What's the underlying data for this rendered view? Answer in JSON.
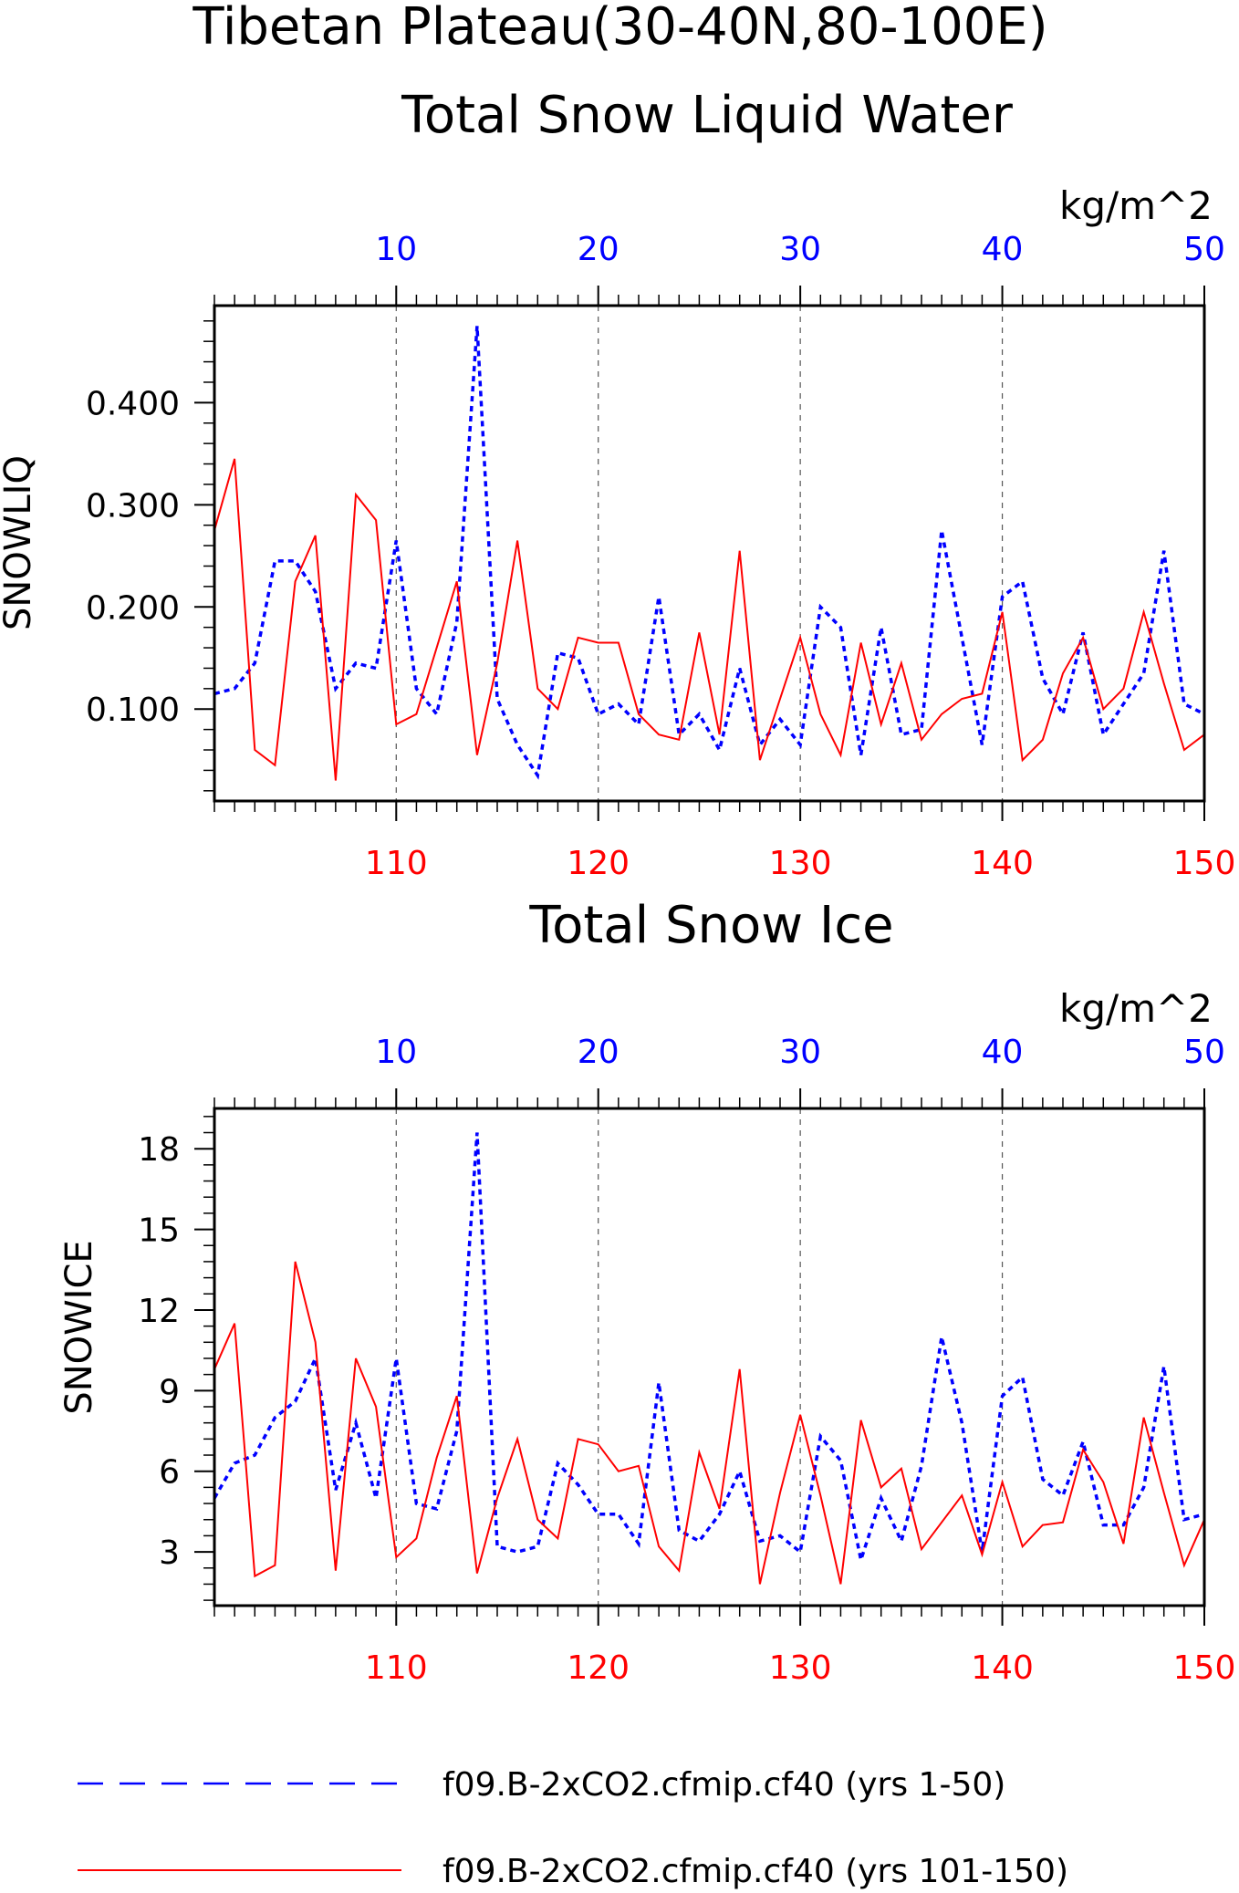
{
  "page": {
    "title_line1": "Tibetan Plateau(30-40N,80-100E)"
  },
  "colors": {
    "series_a": "#0000ff",
    "series_b": "#ff0000",
    "frame": "#000000",
    "grid": "#555555"
  },
  "legend": {
    "entries": [
      {
        "label": "f09.B-2xCO2.cfmip.cf40 (yrs 1-50)",
        "color": "#0000ff",
        "style": "dashed"
      },
      {
        "label": "f09.B-2xCO2.cfmip.cf40 (yrs 101-150)",
        "color": "#ff0000",
        "style": "solid"
      }
    ]
  },
  "chart_data": [
    {
      "type": "line",
      "title": "Total Snow Liquid Water",
      "units": "kg/m^2",
      "ylabel": "SNOWLIQ",
      "ylim": [
        0.01,
        0.495
      ],
      "yticks": [
        0.1,
        0.2,
        0.3,
        0.4
      ],
      "ytick_labels": [
        "0.100",
        "0.200",
        "0.300",
        "0.400"
      ],
      "top_axis": {
        "range": [
          1,
          50
        ],
        "ticks": [
          10,
          20,
          30,
          40,
          50
        ],
        "labels": [
          "10",
          "20",
          "30",
          "40",
          "50"
        ],
        "color": "#0000ff"
      },
      "bottom_axis": {
        "range": [
          101,
          150
        ],
        "ticks": [
          110,
          120,
          130,
          140,
          150
        ],
        "labels": [
          "110",
          "120",
          "130",
          "140",
          "150"
        ],
        "color": "#ff0000"
      },
      "grid": "vertical dashed at major ticks",
      "series": [
        {
          "axis": "top",
          "color": "#0000ff",
          "style": "dashed",
          "x": [
            1,
            2,
            3,
            4,
            5,
            6,
            7,
            8,
            9,
            10,
            11,
            12,
            13,
            14,
            15,
            16,
            17,
            18,
            19,
            20,
            21,
            22,
            23,
            24,
            25,
            26,
            27,
            28,
            29,
            30,
            31,
            32,
            33,
            34,
            35,
            36,
            37,
            38,
            39,
            40,
            41,
            42,
            43,
            44,
            45,
            46,
            47,
            48,
            49,
            50
          ],
          "values": [
            0.115,
            0.12,
            0.145,
            0.245,
            0.245,
            0.215,
            0.12,
            0.145,
            0.14,
            0.265,
            0.12,
            0.095,
            0.185,
            0.475,
            0.11,
            0.065,
            0.035,
            0.155,
            0.15,
            0.095,
            0.105,
            0.085,
            0.21,
            0.075,
            0.095,
            0.06,
            0.14,
            0.065,
            0.09,
            0.065,
            0.2,
            0.18,
            0.055,
            0.18,
            0.075,
            0.08,
            0.275,
            0.17,
            0.065,
            0.21,
            0.225,
            0.13,
            0.095,
            0.175,
            0.075,
            0.105,
            0.135,
            0.255,
            0.105,
            0.095
          ]
        },
        {
          "axis": "bottom",
          "color": "#ff0000",
          "style": "solid",
          "x": [
            101,
            102,
            103,
            104,
            105,
            106,
            107,
            108,
            109,
            110,
            111,
            112,
            113,
            114,
            115,
            116,
            117,
            118,
            119,
            120,
            121,
            122,
            123,
            124,
            125,
            126,
            127,
            128,
            129,
            130,
            131,
            132,
            133,
            134,
            135,
            136,
            137,
            138,
            139,
            140,
            141,
            142,
            143,
            144,
            145,
            146,
            147,
            148,
            149,
            150
          ],
          "values": [
            0.275,
            0.345,
            0.06,
            0.045,
            0.225,
            0.27,
            0.03,
            0.31,
            0.285,
            0.085,
            0.095,
            0.16,
            0.225,
            0.055,
            0.145,
            0.265,
            0.12,
            0.1,
            0.17,
            0.165,
            0.165,
            0.095,
            0.075,
            0.07,
            0.175,
            0.075,
            0.255,
            0.05,
            0.11,
            0.17,
            0.095,
            0.055,
            0.165,
            0.085,
            0.145,
            0.07,
            0.095,
            0.11,
            0.115,
            0.195,
            0.05,
            0.07,
            0.135,
            0.17,
            0.1,
            0.12,
            0.195,
            0.125,
            0.06,
            0.075
          ]
        }
      ]
    },
    {
      "type": "line",
      "title": "Total Snow Ice",
      "units": "kg/m^2",
      "ylabel": "SNOWICE",
      "ylim": [
        1.0,
        19.5
      ],
      "yticks": [
        3,
        6,
        9,
        12,
        15,
        18
      ],
      "ytick_labels": [
        "3",
        "6",
        "9",
        "12",
        "15",
        "18"
      ],
      "top_axis": {
        "range": [
          1,
          50
        ],
        "ticks": [
          10,
          20,
          30,
          40,
          50
        ],
        "labels": [
          "10",
          "20",
          "30",
          "40",
          "50"
        ],
        "color": "#0000ff"
      },
      "bottom_axis": {
        "range": [
          101,
          150
        ],
        "ticks": [
          110,
          120,
          130,
          140,
          150
        ],
        "labels": [
          "110",
          "120",
          "130",
          "140",
          "150"
        ],
        "color": "#ff0000"
      },
      "grid": "vertical dashed at major ticks",
      "series": [
        {
          "axis": "top",
          "color": "#0000ff",
          "style": "dashed",
          "x": [
            1,
            2,
            3,
            4,
            5,
            6,
            7,
            8,
            9,
            10,
            11,
            12,
            13,
            14,
            15,
            16,
            17,
            18,
            19,
            20,
            21,
            22,
            23,
            24,
            25,
            26,
            27,
            28,
            29,
            30,
            31,
            32,
            33,
            34,
            35,
            36,
            37,
            38,
            39,
            40,
            41,
            42,
            43,
            44,
            45,
            46,
            47,
            48,
            49,
            50
          ],
          "values": [
            5.0,
            6.3,
            6.6,
            8.0,
            8.6,
            10.2,
            5.3,
            7.8,
            5.0,
            10.2,
            4.8,
            4.6,
            7.5,
            18.6,
            3.2,
            3.0,
            3.2,
            6.3,
            5.5,
            4.4,
            4.4,
            3.3,
            9.3,
            3.8,
            3.4,
            4.4,
            6.0,
            3.4,
            3.6,
            3.0,
            7.3,
            6.4,
            2.7,
            5.0,
            3.4,
            6.2,
            11.0,
            7.8,
            3.0,
            8.8,
            9.5,
            5.7,
            5.1,
            7.1,
            4.0,
            4.0,
            5.4,
            9.9,
            4.2,
            4.4
          ]
        },
        {
          "axis": "bottom",
          "color": "#ff0000",
          "style": "solid",
          "x": [
            101,
            102,
            103,
            104,
            105,
            106,
            107,
            108,
            109,
            110,
            111,
            112,
            113,
            114,
            115,
            116,
            117,
            118,
            119,
            120,
            121,
            122,
            123,
            124,
            125,
            126,
            127,
            128,
            129,
            130,
            131,
            132,
            133,
            134,
            135,
            136,
            137,
            138,
            139,
            140,
            141,
            142,
            143,
            144,
            145,
            146,
            147,
            148,
            149,
            150
          ],
          "values": [
            9.8,
            11.5,
            2.1,
            2.5,
            13.8,
            10.8,
            2.3,
            10.2,
            8.4,
            2.8,
            3.5,
            6.5,
            8.8,
            2.2,
            5.0,
            7.2,
            4.2,
            3.5,
            7.2,
            7.0,
            6.0,
            6.2,
            3.2,
            2.3,
            6.7,
            4.6,
            9.8,
            1.8,
            5.2,
            8.1,
            5.1,
            1.8,
            7.9,
            5.4,
            6.1,
            3.1,
            4.1,
            5.1,
            2.9,
            5.6,
            3.2,
            4.0,
            4.1,
            6.8,
            5.6,
            3.3,
            8.0,
            5.2,
            2.5,
            4.2
          ]
        }
      ]
    }
  ]
}
